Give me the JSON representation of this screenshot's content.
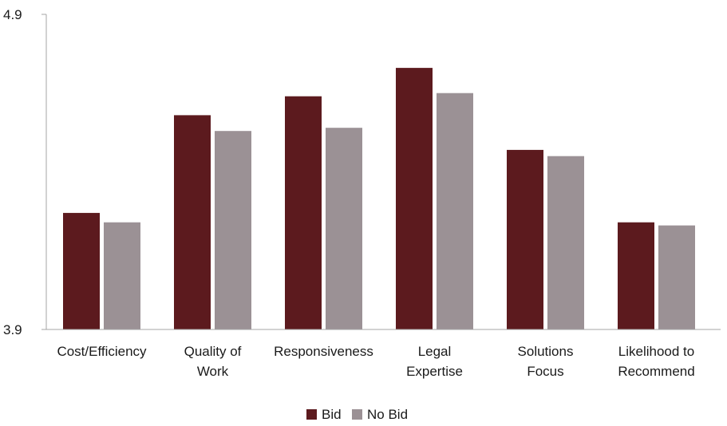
{
  "chart_data": {
    "type": "bar",
    "title": "",
    "xlabel": "",
    "ylabel": "",
    "ylim": [
      3.9,
      4.9
    ],
    "y_tick_labels": [
      "3.9",
      "4.9"
    ],
    "categories": [
      [
        "Cost/Efficiency"
      ],
      [
        "Quality of",
        "Work"
      ],
      [
        "Responsiveness"
      ],
      [
        "Legal",
        "Expertise"
      ],
      [
        "Solutions",
        "Focus"
      ],
      [
        "Likelihood to",
        "Recommend"
      ]
    ],
    "series": [
      {
        "name": "Bid",
        "color": "#5c1a1e",
        "values": [
          4.27,
          4.58,
          4.64,
          4.73,
          4.47,
          4.24
        ]
      },
      {
        "name": "No Bid",
        "color": "#9b9195",
        "values": [
          4.24,
          4.53,
          4.54,
          4.65,
          4.45,
          4.23
        ]
      }
    ],
    "grid": false,
    "legend": {
      "position": "bottom-center",
      "labels": [
        "Bid",
        "No Bid"
      ]
    },
    "axis_color": "#a6a6a6"
  }
}
